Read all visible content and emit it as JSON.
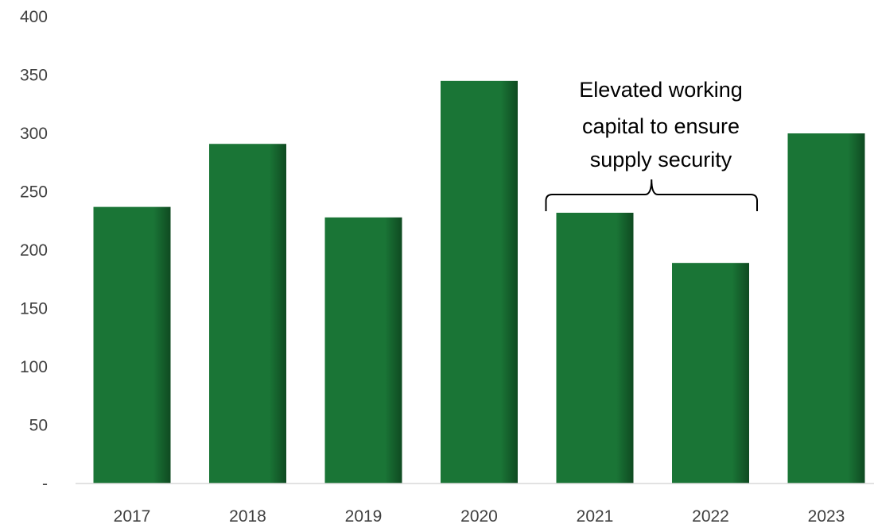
{
  "chart_data": {
    "type": "bar",
    "categories": [
      "2017",
      "2018",
      "2019",
      "2020",
      "2021",
      "2022",
      "2023"
    ],
    "values": [
      237,
      291,
      228,
      345,
      232,
      189,
      300
    ],
    "ylim": [
      0,
      400
    ],
    "yticks": [
      0,
      50,
      100,
      150,
      200,
      250,
      300,
      350,
      400
    ],
    "ytick_labels": [
      "-",
      "50",
      "100",
      "150",
      "200",
      "250",
      "300",
      "350",
      "400"
    ],
    "grid": false,
    "bar_color": "#1a7536",
    "bar_shade_color": "#0f4a21",
    "annotation": {
      "lines": [
        "Elevated working",
        "capital to ensure",
        "supply security"
      ],
      "spans_categories": [
        "2021",
        "2022"
      ]
    }
  }
}
